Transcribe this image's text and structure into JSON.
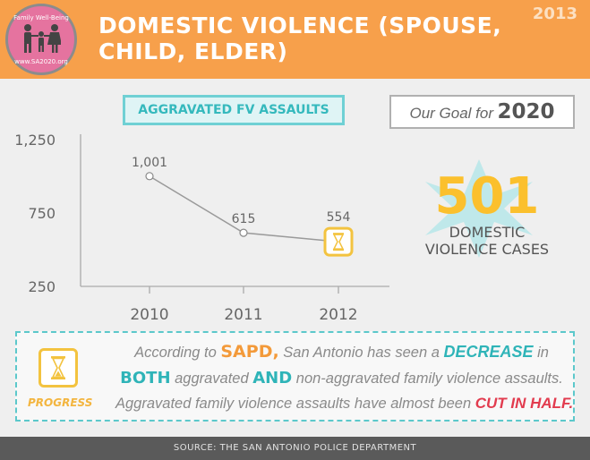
{
  "header": {
    "logo_top_text": "Family Well-Being",
    "logo_bottom_text": "www.SA2020.org",
    "title_line1": "DOMESTIC VIOLENCE (SPOUSE,",
    "title_line2": "CHILD, ELDER)",
    "year": "2013",
    "bg_color": "#f7a04b"
  },
  "chart_title": "AGGRAVATED FV ASSAULTS",
  "chart_data": {
    "type": "line",
    "title": "AGGRAVATED FV ASSAULTS",
    "x": [
      "2010",
      "2011",
      "2012"
    ],
    "series": [
      {
        "values": [
          1001,
          615,
          554
        ]
      }
    ],
    "data_labels": [
      "1,001",
      "615",
      "554"
    ],
    "yticks": [
      "1,250",
      "750",
      "250"
    ],
    "ytick_values": [
      1250,
      750,
      250
    ],
    "ylim": [
      250,
      1250
    ],
    "grid": false,
    "last_point_marker": "hourglass-icon",
    "line_color": "#9a9a9a",
    "marker_highlight_color": "#f3c33f"
  },
  "goal": {
    "label": "Our Goal for",
    "year": "2020",
    "value": "501",
    "desc_line1": "DOMESTIC",
    "desc_line2": "VIOLENCE CASES",
    "value_color": "#fbc02d"
  },
  "progress": {
    "label": "PROGRESS",
    "icon": "hourglass-icon",
    "l1_a": "According to ",
    "l1_b": "SAPD,",
    "l1_c": " San Antonio has seen a ",
    "l1_d": "DECREASE",
    "l1_e": " in",
    "l2_a": "BOTH",
    "l2_b": " aggravated ",
    "l2_c": "AND",
    "l2_d": " non-aggravated family violence assaults.",
    "l3_a": "Aggravated family violence assaults have almost been ",
    "l3_b": "CUT IN HALF."
  },
  "footer": "SOURCE: THE SAN ANTONIO POLICE DEPARTMENT"
}
